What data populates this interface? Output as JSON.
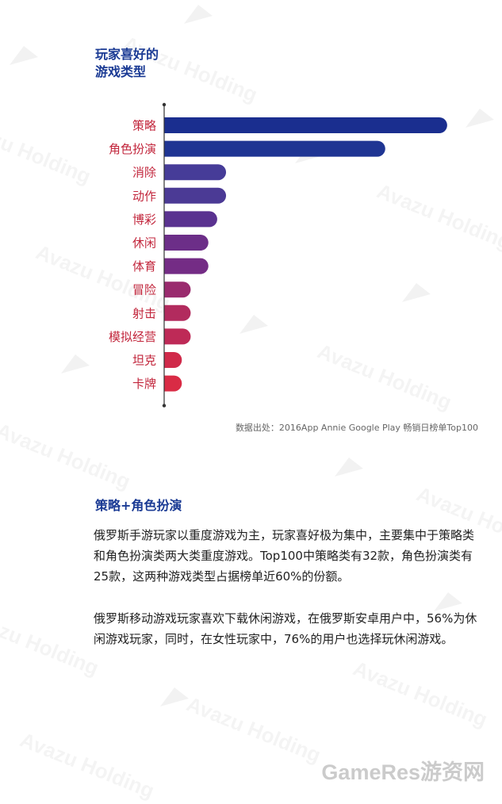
{
  "title_line1": "玩家喜好的",
  "title_line2": "游戏类型",
  "chart_data": {
    "type": "bar",
    "orientation": "horizontal",
    "categories": [
      "策略",
      "角色扮演",
      "消除",
      "动作",
      "博彩",
      "休闲",
      "体育",
      "冒险",
      "射击",
      "模拟经营",
      "坦克",
      "卡牌"
    ],
    "values": [
      32,
      25,
      7,
      7,
      6,
      5,
      5,
      3,
      3,
      3,
      2,
      2
    ],
    "xlim": [
      0,
      33
    ],
    "grid": false,
    "legend": "none",
    "colors": [
      "#1a2e8f",
      "#1f3593",
      "#463c98",
      "#4b3a95",
      "#5a3290",
      "#6c2e88",
      "#742c85",
      "#9a2b6e",
      "#b22b5e",
      "#be2a57",
      "#d02a4a",
      "#d92b45"
    ],
    "label_color": "#c2263c",
    "axis_color": "#333333"
  },
  "source_text": "数据出处：2016App Annie Google Play 畅销日榜单Top100",
  "section_title": "策略+角色扮演",
  "paragraph1": "俄罗斯手游玩家以重度游戏为主，玩家喜好极为集中，主要集中于策略类和角色扮演类两大类重度游戏。Top100中策略类有32款，角色扮演类有25款，这两种游戏类型占据榜单近60%的份额。",
  "paragraph2": "俄罗斯移动游戏玩家喜欢下载休闲游戏，在俄罗斯安卓用户中，56%为休闲游戏玩家，同时，在女性玩家中，76%的用户也选择玩休闲游戏。",
  "watermark_text": "Avazu Holding",
  "corner_watermark": "GameRes游资网"
}
